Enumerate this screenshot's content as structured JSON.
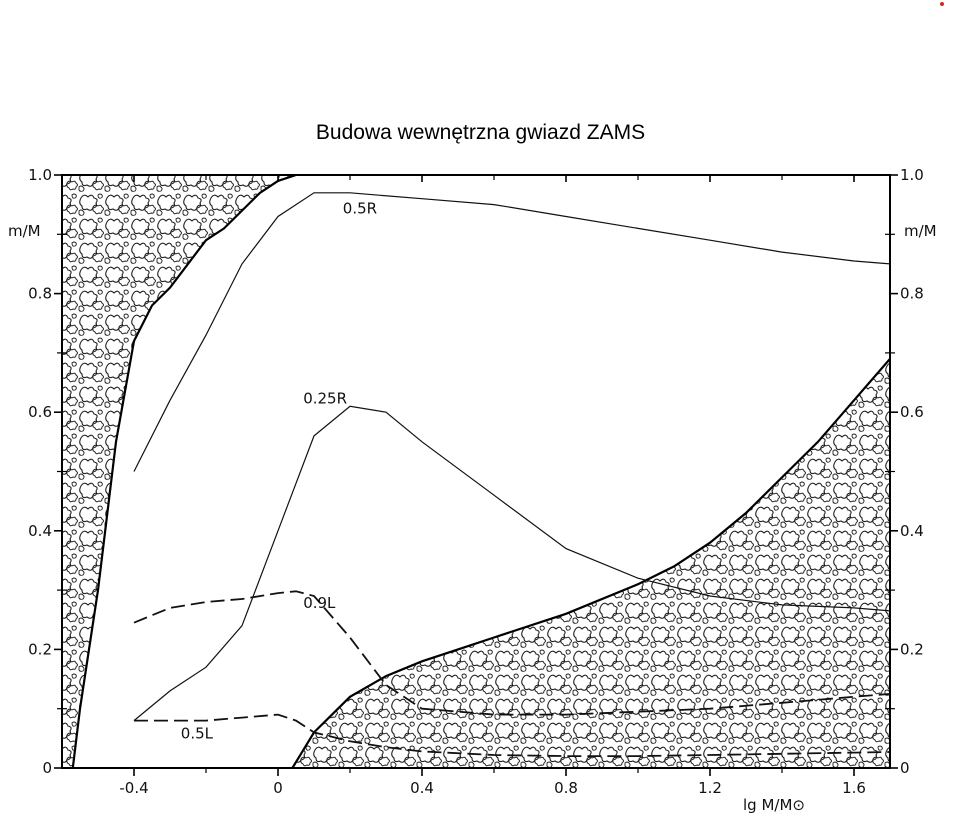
{
  "chart_data": {
    "type": "line",
    "title": "Budowa wewnętrzna gwiazd ZAMS",
    "xlabel": "lg M/M⊙",
    "ylabel": "m/M",
    "xlim": [
      -0.6,
      1.7
    ],
    "ylim": [
      0,
      1.0
    ],
    "x_ticks": [
      "-0.4",
      "0",
      "0.4",
      "0.8",
      "1.2",
      "1.6"
    ],
    "x_tick_values": [
      -0.4,
      0,
      0.4,
      0.8,
      1.2,
      1.6
    ],
    "y_ticks_left": [
      "0",
      "0.2",
      "0.4",
      "0.6",
      "0.8",
      "1.0"
    ],
    "y_ticks_right": [
      "0",
      "0.2",
      "0.4",
      "0.6",
      "0.8",
      "1.0"
    ],
    "y_tick_values": [
      0,
      0.2,
      0.4,
      0.6,
      0.8,
      1.0
    ],
    "grid": false,
    "series": [
      {
        "name": "0.5R",
        "style": "solid",
        "x": [
          -0.4,
          -0.3,
          -0.2,
          -0.1,
          0.0,
          0.1,
          0.2,
          0.4,
          0.6,
          0.8,
          1.0,
          1.2,
          1.4,
          1.6,
          1.7
        ],
        "y": [
          0.5,
          0.62,
          0.73,
          0.85,
          0.93,
          0.97,
          0.97,
          0.96,
          0.95,
          0.93,
          0.91,
          0.89,
          0.87,
          0.855,
          0.85
        ]
      },
      {
        "name": "0.25R",
        "style": "solid",
        "x": [
          -0.4,
          -0.3,
          -0.2,
          -0.1,
          0.0,
          0.1,
          0.2,
          0.3,
          0.4,
          0.6,
          0.8,
          1.0,
          1.2,
          1.4,
          1.6,
          1.7
        ],
        "y": [
          0.08,
          0.13,
          0.17,
          0.24,
          0.4,
          0.56,
          0.61,
          0.6,
          0.55,
          0.46,
          0.37,
          0.32,
          0.29,
          0.275,
          0.27,
          0.265
        ]
      },
      {
        "name": "0.9L",
        "style": "dashed",
        "x": [
          -0.4,
          -0.3,
          -0.2,
          -0.1,
          0.0,
          0.05,
          0.1,
          0.2,
          0.3,
          0.4,
          0.6,
          0.8,
          1.0,
          1.2,
          1.4,
          1.6,
          1.7
        ],
        "y": [
          0.245,
          0.27,
          0.28,
          0.285,
          0.295,
          0.298,
          0.29,
          0.22,
          0.14,
          0.1,
          0.09,
          0.09,
          0.095,
          0.1,
          0.11,
          0.12,
          0.125
        ]
      },
      {
        "name": "0.5L",
        "style": "dashed",
        "x": [
          -0.4,
          -0.3,
          -0.2,
          -0.1,
          0.0,
          0.05,
          0.1,
          0.2,
          0.3,
          0.4,
          0.6,
          0.8,
          1.0,
          1.2,
          1.4,
          1.6,
          1.7
        ],
        "y": [
          0.08,
          0.08,
          0.08,
          0.085,
          0.09,
          0.08,
          0.06,
          0.045,
          0.035,
          0.028,
          0.022,
          0.02,
          0.02,
          0.022,
          0.024,
          0.026,
          0.027
        ]
      }
    ],
    "regions": [
      {
        "name": "outer-convective-envelope",
        "boundary_x": [
          -0.57,
          -0.55,
          -0.5,
          -0.45,
          -0.4,
          -0.35,
          -0.3,
          -0.25,
          -0.2,
          -0.15,
          -0.1,
          -0.05,
          0.0,
          0.05
        ],
        "boundary_y": [
          0.0,
          0.1,
          0.3,
          0.55,
          0.72,
          0.78,
          0.81,
          0.85,
          0.89,
          0.91,
          0.94,
          0.97,
          0.99,
          1.0
        ]
      },
      {
        "name": "convective-core",
        "boundary_x": [
          0.04,
          0.1,
          0.2,
          0.3,
          0.4,
          0.5,
          0.6,
          0.8,
          1.0,
          1.1,
          1.2,
          1.3,
          1.4,
          1.5,
          1.6,
          1.7
        ],
        "boundary_y": [
          0.0,
          0.06,
          0.12,
          0.155,
          0.18,
          0.2,
          0.22,
          0.26,
          0.31,
          0.34,
          0.38,
          0.43,
          0.49,
          0.55,
          0.62,
          0.69
        ]
      }
    ]
  }
}
